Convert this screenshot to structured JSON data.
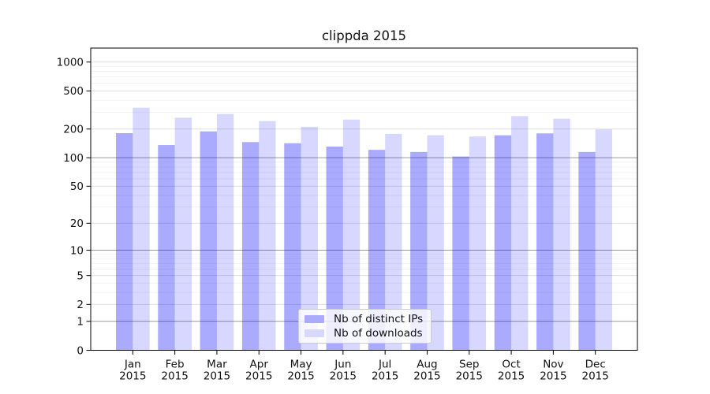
{
  "chart_data": {
    "type": "bar",
    "title": "clippda 2015",
    "x": {
      "months": [
        "Jan",
        "Feb",
        "Mar",
        "Apr",
        "May",
        "Jun",
        "Jul",
        "Aug",
        "Sep",
        "Oct",
        "Nov",
        "Dec"
      ],
      "year": "2015"
    },
    "series": [
      {
        "name": "Nb of distinct IPs",
        "color": "#aaaaff",
        "bar_fill": "rgba(0,0,255,0.335)",
        "values": [
          181,
          136,
          189,
          146,
          142,
          131,
          121,
          115,
          103,
          172,
          180,
          115
        ]
      },
      {
        "name": "Nb of downloads",
        "color": "#d8d8ff",
        "bar_fill": "rgba(0,0,255,0.155)",
        "values": [
          334,
          263,
          287,
          242,
          211,
          251,
          178,
          172,
          167,
          273,
          256,
          198
        ]
      }
    ],
    "y_axis": {
      "scale": "log1p",
      "ticks": [
        0,
        1,
        2,
        5,
        10,
        20,
        50,
        100,
        200,
        500,
        1000
      ],
      "emphasized_gridlines": [
        1,
        10,
        100
      ],
      "minor_gridlines": [
        3,
        4,
        6,
        7,
        8,
        9,
        30,
        40,
        60,
        70,
        80,
        90,
        300,
        400,
        600,
        700,
        800,
        900
      ],
      "ylim": [
        0,
        1400
      ]
    },
    "legend_position": "lower center",
    "grid": true,
    "colors": {
      "grid_minor": "#f2f2f2",
      "grid_labeled": "#e0e0e0",
      "grid_decade": "#9b9b9b",
      "spine": "#000000",
      "text": "#111111"
    }
  }
}
